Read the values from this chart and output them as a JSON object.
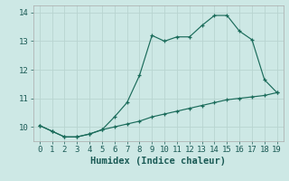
{
  "title": "",
  "xlabel": "Humidex (Indice chaleur)",
  "ylabel": "",
  "x_line1": [
    0,
    1,
    2,
    3,
    4,
    5,
    6,
    7,
    8,
    9,
    10,
    11,
    12,
    13,
    14,
    15,
    16,
    17,
    18,
    19
  ],
  "y_line1": [
    10.05,
    9.85,
    9.65,
    9.65,
    9.75,
    9.9,
    10.35,
    10.85,
    11.8,
    13.2,
    13.0,
    13.15,
    13.15,
    13.55,
    13.9,
    13.9,
    13.35,
    13.05,
    11.65,
    11.2
  ],
  "x_line2": [
    0,
    1,
    2,
    3,
    4,
    5,
    6,
    7,
    8,
    9,
    10,
    11,
    12,
    13,
    14,
    15,
    16,
    17,
    18,
    19
  ],
  "y_line2": [
    10.05,
    9.85,
    9.65,
    9.65,
    9.75,
    9.9,
    10.0,
    10.1,
    10.2,
    10.35,
    10.45,
    10.55,
    10.65,
    10.75,
    10.85,
    10.95,
    11.0,
    11.05,
    11.1,
    11.2
  ],
  "line_color": "#1a6b5a",
  "bg_color": "#cde8e5",
  "grid_color_major": "#b8d4d0",
  "grid_color_minor": "#d0e4e0",
  "ylim": [
    9.5,
    14.25
  ],
  "xlim": [
    -0.5,
    19.5
  ],
  "yticks": [
    10,
    11,
    12,
    13,
    14
  ],
  "xticks": [
    0,
    1,
    2,
    3,
    4,
    5,
    6,
    7,
    8,
    9,
    10,
    11,
    12,
    13,
    14,
    15,
    16,
    17,
    18,
    19
  ],
  "marker": "+",
  "tick_fontsize": 6.5,
  "xlabel_fontsize": 7.5
}
